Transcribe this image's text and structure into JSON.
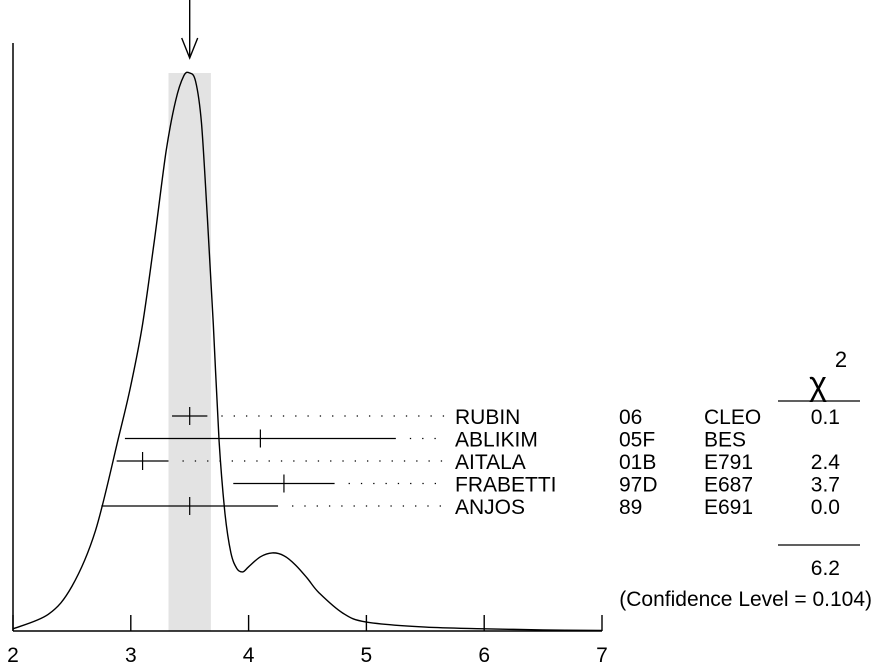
{
  "chart_data": {
    "type": "ideogram",
    "title": "",
    "x_range": [
      2,
      7
    ],
    "x_ticks": [
      "2",
      "3",
      "4",
      "5",
      "6",
      "7"
    ],
    "weighted_average": {
      "value": 3.5,
      "error": 0.18
    },
    "measurements": [
      {
        "author": "RUBIN",
        "year": "06",
        "experiment": "CLEO",
        "value": 3.5,
        "err_low": 0.15,
        "err_high": 0.15,
        "chi2": "0.1"
      },
      {
        "author": "ABLIKIM",
        "year": "05F",
        "experiment": "BES",
        "value": 4.1,
        "err_low": 1.15,
        "err_high": 1.15,
        "chi2": ""
      },
      {
        "author": "AITALA",
        "year": "01B",
        "experiment": "E791",
        "value": 3.1,
        "err_low": 0.22,
        "err_high": 0.22,
        "chi2": "2.4"
      },
      {
        "author": "FRABETTI",
        "year": "97D",
        "experiment": "E687",
        "value": 4.3,
        "err_low": 0.43,
        "err_high": 0.43,
        "chi2": "3.7"
      },
      {
        "author": "ANJOS",
        "year": "89",
        "experiment": "E691",
        "value": 3.5,
        "err_low": 0.75,
        "err_high": 0.75,
        "chi2": "0.0"
      }
    ],
    "chi2_header": "χ",
    "chi2_exponent": "2",
    "chi2_total": "6.2",
    "confidence_level": "(Confidence Level = 0.104)",
    "curve": [
      [
        2.0,
        0.004
      ],
      [
        2.3,
        0.03
      ],
      [
        2.5,
        0.08
      ],
      [
        2.7,
        0.18
      ],
      [
        2.9,
        0.35
      ],
      [
        3.0,
        0.44
      ],
      [
        3.1,
        0.55
      ],
      [
        3.2,
        0.7
      ],
      [
        3.3,
        0.86
      ],
      [
        3.38,
        0.95
      ],
      [
        3.45,
        0.995
      ],
      [
        3.5,
        1.0
      ],
      [
        3.55,
        0.985
      ],
      [
        3.6,
        0.91
      ],
      [
        3.65,
        0.74
      ],
      [
        3.7,
        0.55
      ],
      [
        3.75,
        0.34
      ],
      [
        3.8,
        0.21
      ],
      [
        3.85,
        0.14
      ],
      [
        3.9,
        0.112
      ],
      [
        3.95,
        0.106
      ],
      [
        4.0,
        0.115
      ],
      [
        4.1,
        0.133
      ],
      [
        4.2,
        0.14
      ],
      [
        4.3,
        0.135
      ],
      [
        4.4,
        0.118
      ],
      [
        4.5,
        0.094
      ],
      [
        4.6,
        0.068
      ],
      [
        4.8,
        0.032
      ],
      [
        5.0,
        0.016
      ],
      [
        5.5,
        0.007
      ],
      [
        6.0,
        0.004
      ],
      [
        6.5,
        0.002
      ],
      [
        7.0,
        0.001
      ]
    ]
  }
}
